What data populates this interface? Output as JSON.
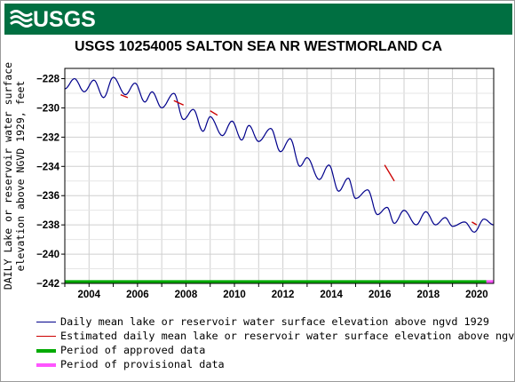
{
  "header": {
    "logo_text": "USGS",
    "brand_color": "#006f41",
    "logo_icon": "usgs-wave-icon"
  },
  "chart_data": {
    "type": "line",
    "title": "USGS 10254005 SALTON SEA NR WESTMORLAND CA",
    "xlabel": "",
    "ylabel": "DAILY Lake or reservoir water surface elevation above NGVD 1929, feet",
    "ylim": [
      -242,
      -227.3
    ],
    "xlim": [
      2003,
      2020.7
    ],
    "x_ticks": [
      "2004",
      "2006",
      "2008",
      "2010",
      "2012",
      "2014",
      "2016",
      "2018",
      "2020"
    ],
    "y_ticks": [
      "-228",
      "-230",
      "-232",
      "-234",
      "-236",
      "-238",
      "-240",
      "-242"
    ],
    "grid": true,
    "series": [
      {
        "name": "Daily mean lake or reservoir water surface elevation above ngvd 1929",
        "color": "#00008b",
        "x": [
          2003.0,
          2003.4,
          2003.8,
          2004.2,
          2004.6,
          2005.0,
          2005.5,
          2005.9,
          2006.3,
          2006.6,
          2007.0,
          2007.5,
          2007.9,
          2008.3,
          2008.7,
          2009.0,
          2009.5,
          2009.9,
          2010.3,
          2010.6,
          2011.0,
          2011.5,
          2011.9,
          2012.3,
          2012.7,
          2013.0,
          2013.5,
          2013.9,
          2014.3,
          2014.7,
          2015.0,
          2015.5,
          2015.9,
          2016.3,
          2016.6,
          2017.0,
          2017.5,
          2017.9,
          2018.3,
          2018.7,
          2019.0,
          2019.5,
          2019.9,
          2020.3,
          2020.7
        ],
        "y": [
          -228.7,
          -228.0,
          -228.9,
          -228.1,
          -229.3,
          -227.9,
          -229.1,
          -228.3,
          -229.6,
          -228.9,
          -230.0,
          -229.0,
          -230.8,
          -230.1,
          -231.6,
          -230.6,
          -231.9,
          -230.9,
          -232.2,
          -231.2,
          -232.3,
          -231.4,
          -233.0,
          -232.1,
          -234.0,
          -233.4,
          -234.9,
          -233.9,
          -235.7,
          -234.8,
          -236.2,
          -235.6,
          -237.3,
          -236.8,
          -237.9,
          -237.0,
          -238.0,
          -237.1,
          -238.0,
          -237.5,
          -238.1,
          -237.8,
          -238.5,
          -237.6,
          -238.0
        ]
      },
      {
        "name": "Estimated daily mean lake or reservoir water surface elevation above ngvd",
        "color": "#cc0000",
        "segments": [
          {
            "x": [
              2005.3,
              2005.6
            ],
            "y": [
              -229.1,
              -229.3
            ]
          },
          {
            "x": [
              2007.5,
              2007.9
            ],
            "y": [
              -229.5,
              -229.8
            ]
          },
          {
            "x": [
              2009.0,
              2009.3
            ],
            "y": [
              -230.2,
              -230.5
            ]
          },
          {
            "x": [
              2016.2,
              2016.6
            ],
            "y": [
              -233.9,
              -235.0
            ]
          },
          {
            "x": [
              2019.8,
              2020.0
            ],
            "y": [
              -237.8,
              -238.0
            ]
          }
        ]
      }
    ],
    "periods": [
      {
        "name": "Period of approved data",
        "color": "#00aa00",
        "x": [
          2003.0,
          2020.4
        ],
        "y": -241.9
      },
      {
        "name": "Period of provisional data",
        "color": "#ff55ff",
        "x": [
          2020.4,
          2020.7
        ],
        "y": -241.9
      }
    ]
  },
  "legend": [
    {
      "label": "Daily mean lake or reservoir water surface elevation above ngvd 1929",
      "color": "#00008b",
      "style": "thin"
    },
    {
      "label": "Estimated daily mean lake or reservoir water surface elevation above ngvd",
      "color": "#cc0000",
      "style": "thin"
    },
    {
      "label": "Period of approved data",
      "color": "#00aa00",
      "style": "thick"
    },
    {
      "label": "Period of provisional data",
      "color": "#ff55ff",
      "style": "thick"
    }
  ]
}
